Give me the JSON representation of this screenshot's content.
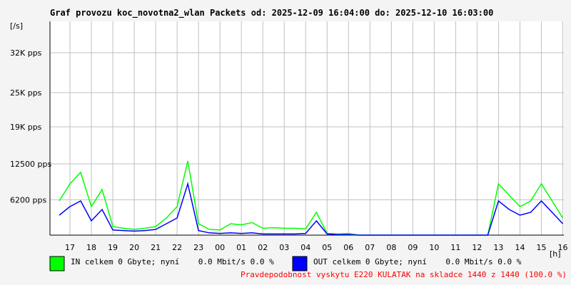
{
  "chart_data": {
    "type": "line",
    "title": "Graf provozu koc_novotna2_wlan Packets od: 2025-12-09 16:04:00 do: 2025-12-10 16:03:00",
    "y_unit": "[/s]",
    "x_unit": "[h]",
    "footer": "Pravdepodobnost vyskytu E220 KULATAK na skladce 1440 z 1440 (100.0 %)",
    "x": [
      0.5,
      1,
      1.5,
      2,
      2.5,
      3,
      3.5,
      4,
      4.5,
      5,
      5.5,
      6,
      6.5,
      7,
      7.5,
      8,
      8.5,
      9,
      9.5,
      10,
      10.5,
      11,
      11.5,
      12,
      12.5,
      13,
      13.5,
      14,
      14.5,
      15,
      15.5,
      16,
      16.5,
      17,
      17.5,
      18,
      18.5,
      19,
      19.5,
      20,
      20.5,
      21,
      21.5,
      22,
      22.5,
      23,
      23.5,
      24
    ],
    "series": [
      {
        "name": "IN celkem 0 Gbyte; nyní    0.0 Mbit/s 0.0 %",
        "color": "#00ff00",
        "values": [
          6000,
          9000,
          11000,
          5000,
          8000,
          1500,
          1200,
          1000,
          1200,
          1500,
          3000,
          5000,
          13000,
          2000,
          1000,
          900,
          2000,
          1800,
          2200,
          1200,
          1300,
          1200,
          1200,
          1100,
          4000,
          300,
          200,
          300,
          0,
          0,
          0,
          0,
          0,
          0,
          0,
          0,
          0,
          0,
          0,
          0,
          0,
          9000,
          7000,
          5000,
          6000,
          9000,
          6000,
          3000
        ]
      },
      {
        "name": "OUT celkem 0 Gbyte; nyní    0.0 Mbit/s 0.0 %",
        "color": "#0000ff",
        "values": [
          3500,
          5000,
          6000,
          2500,
          4500,
          900,
          800,
          700,
          800,
          1000,
          2000,
          3000,
          9000,
          800,
          400,
          300,
          400,
          300,
          400,
          200,
          200,
          200,
          200,
          300,
          2500,
          200,
          100,
          100,
          0,
          0,
          0,
          0,
          0,
          0,
          0,
          0,
          0,
          0,
          0,
          0,
          0,
          6000,
          4500,
          3500,
          4000,
          6000,
          4000,
          2000
        ]
      }
    ],
    "xlim": [
      0.0667,
      24.05
    ],
    "xticks": [
      {
        "value": 1,
        "label": "17"
      },
      {
        "value": 2,
        "label": "18"
      },
      {
        "value": 3,
        "label": "19"
      },
      {
        "value": 4,
        "label": "20"
      },
      {
        "value": 5,
        "label": "21"
      },
      {
        "value": 6,
        "label": "22"
      },
      {
        "value": 7,
        "label": "23"
      },
      {
        "value": 8,
        "label": "00"
      },
      {
        "value": 9,
        "label": "01"
      },
      {
        "value": 10,
        "label": "02"
      },
      {
        "value": 11,
        "label": "03"
      },
      {
        "value": 12,
        "label": "04"
      },
      {
        "value": 13,
        "label": "05"
      },
      {
        "value": 14,
        "label": "06"
      },
      {
        "value": 15,
        "label": "07"
      },
      {
        "value": 16,
        "label": "08"
      },
      {
        "value": 17,
        "label": "09"
      },
      {
        "value": 18,
        "label": "10"
      },
      {
        "value": 19,
        "label": "11"
      },
      {
        "value": 20,
        "label": "12"
      },
      {
        "value": 21,
        "label": "13"
      },
      {
        "value": 22,
        "label": "14"
      },
      {
        "value": 23,
        "label": "15"
      },
      {
        "value": 24,
        "label": "16"
      }
    ],
    "ylim": [
      0,
      37500
    ],
    "yticks": [
      {
        "value": 6200,
        "label": "6200 pps"
      },
      {
        "value": 12500,
        "label": "12500 pps"
      },
      {
        "value": 19000,
        "label": "19K pps"
      },
      {
        "value": 25000,
        "label": "25K pps"
      },
      {
        "value": 32000,
        "label": "32K pps"
      }
    ],
    "grid": true
  }
}
